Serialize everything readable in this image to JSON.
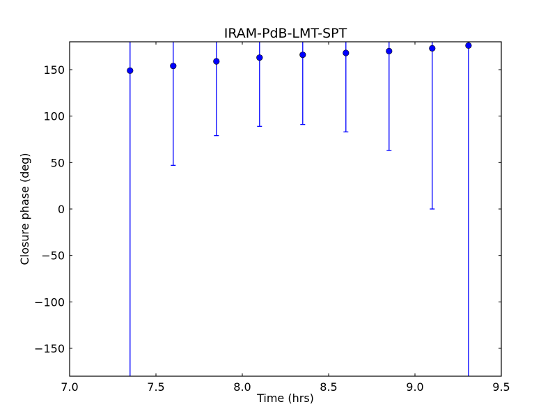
{
  "chart_data": {
    "type": "scatter",
    "title": "IRAM-PdB-LMT-SPT",
    "xlabel": "Time (hrs)",
    "ylabel": "Closure phase (deg)",
    "xlim": [
      7.0,
      9.5
    ],
    "ylim": [
      -180,
      180
    ],
    "xticks": [
      7.0,
      7.5,
      8.0,
      8.5,
      9.0,
      9.5
    ],
    "xtick_labels": [
      "7.0",
      "7.5",
      "8.0",
      "8.5",
      "9.0",
      "9.5"
    ],
    "yticks": [
      -150,
      -100,
      -50,
      0,
      50,
      100,
      150
    ],
    "ytick_labels": [
      "−150",
      "−100",
      "−50",
      "0",
      "50",
      "100",
      "150"
    ],
    "grid": false,
    "marker_color": "#0000ff",
    "series": [
      {
        "x": [
          7.35,
          7.6,
          7.85,
          8.1,
          8.35,
          8.6,
          8.85,
          9.1,
          9.31
        ],
        "y": [
          149,
          154,
          159,
          163,
          166,
          168,
          170,
          173,
          176
        ],
        "y_err_low": [
          -180,
          47,
          79,
          89,
          91,
          83,
          63,
          0,
          -180
        ],
        "y_err_high": [
          180,
          180,
          180,
          180,
          180,
          180,
          180,
          180,
          180
        ]
      }
    ]
  }
}
